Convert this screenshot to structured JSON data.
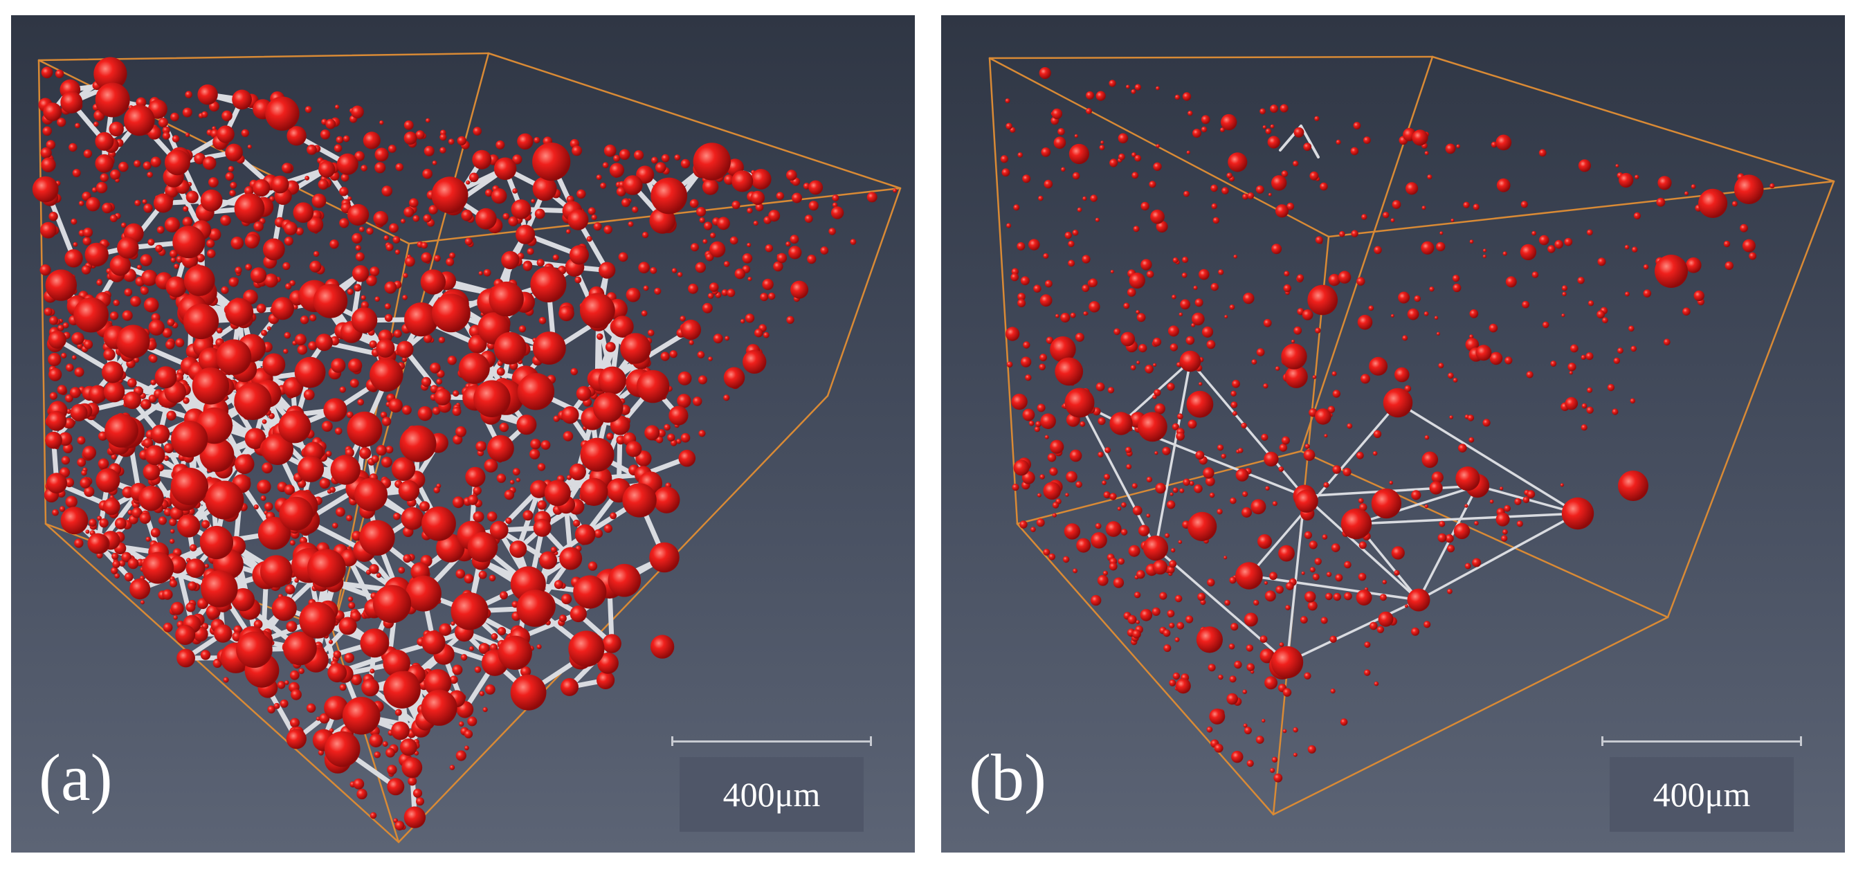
{
  "panels": [
    {
      "id": "a",
      "label": "(a)",
      "scale_text": "400μm",
      "pore_density": "high",
      "box_color": "#d98a35",
      "pore_color": "#e3191b",
      "throat_color": "#d9dbe0"
    },
    {
      "id": "b",
      "label": "(b)",
      "scale_text": "400μm",
      "pore_density": "low",
      "box_color": "#d98a35",
      "pore_color": "#e3191b",
      "throat_color": "#d9dbe0"
    }
  ]
}
